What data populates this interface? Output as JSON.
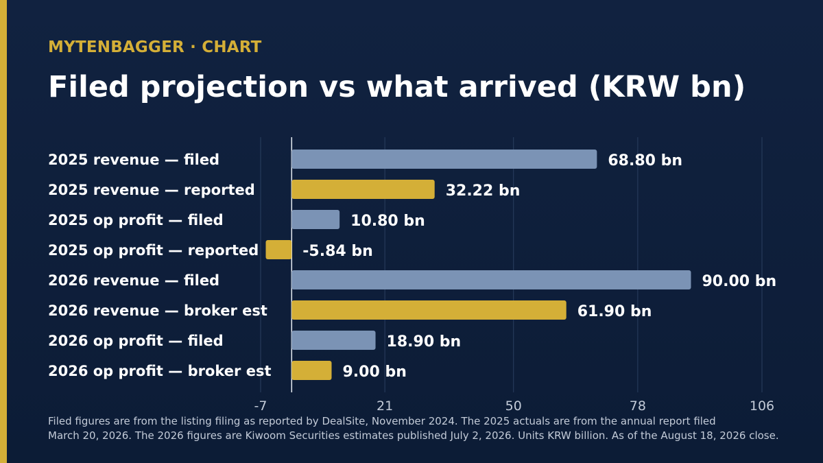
{
  "header": {
    "brand": "MYTENBAGGER · CHART",
    "title": "Filed projection vs what arrived (KRW bn)"
  },
  "colors": {
    "filed": "#7b93b5",
    "reported": "#d4af37",
    "accent": "#d4af37",
    "background": "#0f2140",
    "gridline": "#2a3f60"
  },
  "chart_data": {
    "type": "bar",
    "orientation": "horizontal",
    "categories": [
      "2025 revenue — filed",
      "2025 revenue — reported",
      "2025 op profit — filed",
      "2025 op profit — reported",
      "2026 revenue — filed",
      "2026 revenue — broker est",
      "2026 op profit — filed",
      "2026 op profit — broker est"
    ],
    "values": [
      68.8,
      32.22,
      10.8,
      -5.84,
      90.0,
      61.9,
      18.9,
      9.0
    ],
    "data_labels": [
      "68.80 bn",
      "32.22 bn",
      "10.80 bn",
      "-5.84 bn",
      "90.00 bn",
      "61.90 bn",
      "18.90 bn",
      "9.00 bn"
    ],
    "bar_kinds": [
      "filed",
      "reported",
      "filed",
      "reported",
      "filed",
      "reported",
      "filed",
      "reported"
    ],
    "xlim": [
      -7,
      106
    ],
    "xticks": [
      -7,
      21,
      50,
      78,
      106
    ],
    "xtick_labels": [
      "-7",
      "21",
      "50",
      "78",
      "106"
    ],
    "grid": true,
    "title": "Filed projection vs what arrived (KRW bn)"
  },
  "footnote": {
    "line1": "Filed figures are from the listing filing as reported by DealSite, November 2024. The 2025 actuals are from the annual report filed",
    "line2": "March 20, 2026. The 2026 figures are Kiwoom Securities estimates published July 2, 2026. Units KRW billion. As of the August 18, 2026 close."
  }
}
